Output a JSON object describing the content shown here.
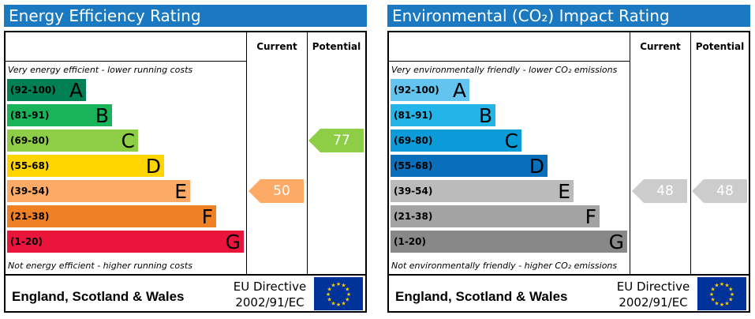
{
  "chart_data": [
    {
      "type": "bar",
      "title": "Energy Efficiency Rating",
      "columns": {
        "current": "Current",
        "potential": "Potential"
      },
      "note_top": "Very energy efficient - lower running costs",
      "note_bottom": "Not energy efficient - higher running costs",
      "bands": [
        {
          "range": "(92-100)",
          "letter": "A",
          "color": "#008054",
          "text_color": "#000000"
        },
        {
          "range": "(81-91)",
          "letter": "B",
          "color": "#19b459",
          "text_color": "#000000"
        },
        {
          "range": "(69-80)",
          "letter": "C",
          "color": "#8dce46",
          "text_color": "#000000"
        },
        {
          "range": "(55-68)",
          "letter": "D",
          "color": "#ffd500",
          "text_color": "#000000"
        },
        {
          "range": "(39-54)",
          "letter": "E",
          "color": "#fcaa65",
          "text_color": "#000000"
        },
        {
          "range": "(21-38)",
          "letter": "F",
          "color": "#ef8023",
          "text_color": "#000000"
        },
        {
          "range": "(1-20)",
          "letter": "G",
          "color": "#e9153b",
          "text_color": "#000000"
        }
      ],
      "current": {
        "value": "50",
        "band": "E",
        "color": "#fcaa65"
      },
      "potential": {
        "value": "77",
        "band": "C",
        "color": "#8dce46"
      },
      "footer": {
        "region": "England, Scotland & Wales",
        "directive_line1": "EU Directive",
        "directive_line2": "2002/91/EC"
      }
    },
    {
      "type": "bar",
      "title": "Environmental (CO₂) Impact Rating",
      "columns": {
        "current": "Current",
        "potential": "Potential"
      },
      "note_top": "Very environmentally friendly - lower CO₂ emissions",
      "note_bottom": "Not environmentally friendly - higher CO₂ emissions",
      "bands": [
        {
          "range": "(92-100)",
          "letter": "A",
          "color": "#63c5ef",
          "text_color": "#000000"
        },
        {
          "range": "(81-91)",
          "letter": "B",
          "color": "#23b4e8",
          "text_color": "#000000"
        },
        {
          "range": "(69-80)",
          "letter": "C",
          "color": "#0a9bd8",
          "text_color": "#000000"
        },
        {
          "range": "(55-68)",
          "letter": "D",
          "color": "#0a6fba",
          "text_color": "#000000"
        },
        {
          "range": "(39-54)",
          "letter": "E",
          "color": "#bbbbbb",
          "text_color": "#000000"
        },
        {
          "range": "(21-38)",
          "letter": "F",
          "color": "#a3a3a3",
          "text_color": "#000000"
        },
        {
          "range": "(1-20)",
          "letter": "G",
          "color": "#888888",
          "text_color": "#000000"
        }
      ],
      "current": {
        "value": "48",
        "band": "E",
        "color": "#cccccc"
      },
      "potential": {
        "value": "48",
        "band": "E",
        "color": "#cccccc"
      },
      "footer": {
        "region": "England, Scotland & Wales",
        "directive_line1": "EU Directive",
        "directive_line2": "2002/91/EC"
      }
    }
  ]
}
